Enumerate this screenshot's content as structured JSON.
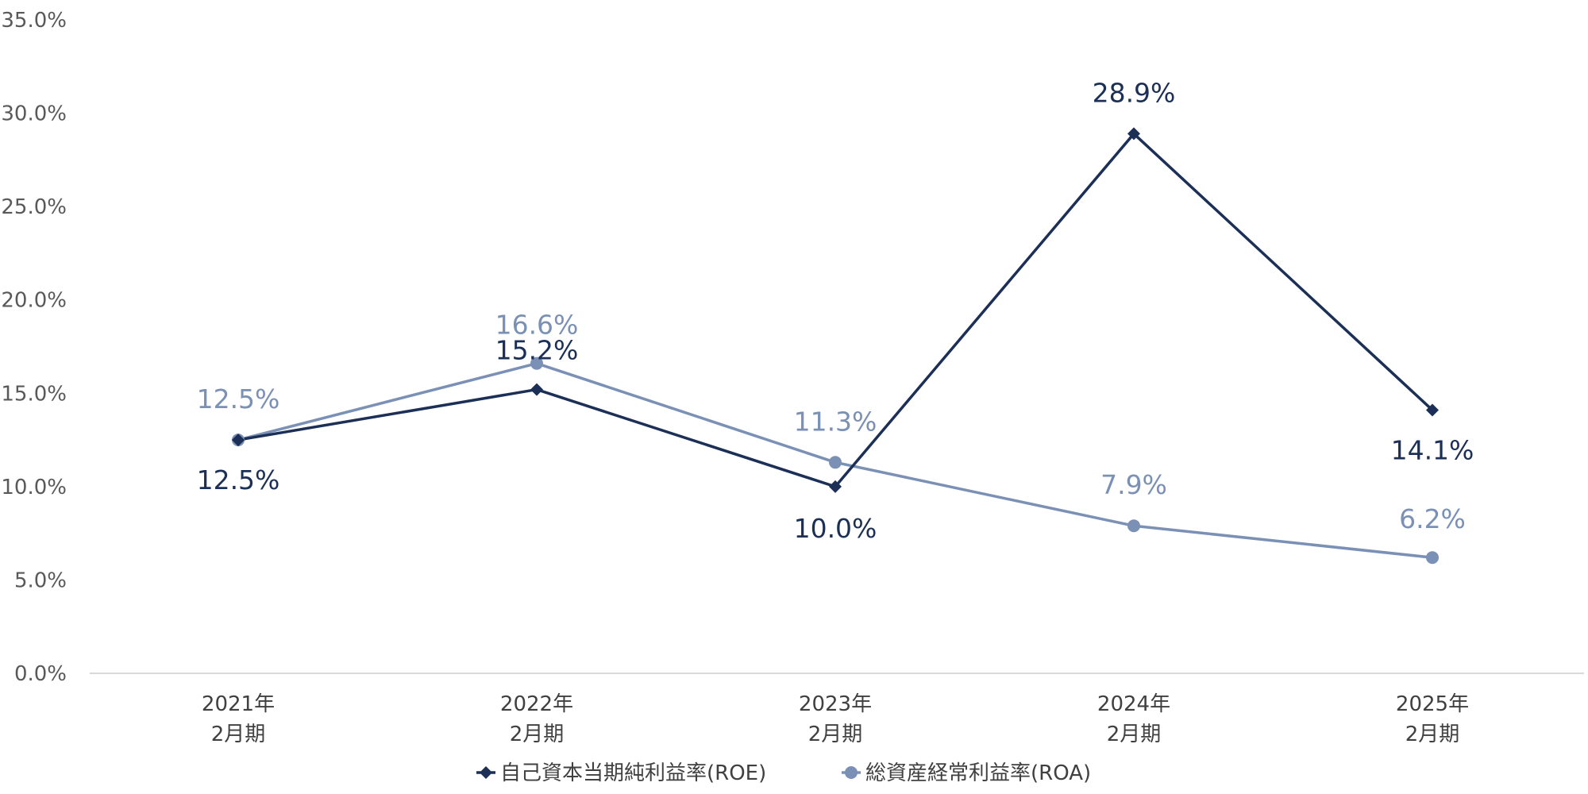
{
  "chart_data": {
    "type": "line",
    "categories": [
      [
        "2021年",
        "2月期"
      ],
      [
        "2022年",
        "2月期"
      ],
      [
        "2023年",
        "2月期"
      ],
      [
        "2024年",
        "2月期"
      ],
      [
        "2025年",
        "2月期"
      ]
    ],
    "series": [
      {
        "name": "自己資本当期純利益率(ROE)",
        "values": [
          12.5,
          15.2,
          10.0,
          28.9,
          14.1
        ],
        "labels": [
          "12.5%",
          "15.2%",
          "10.0%",
          "28.9%",
          "14.1%"
        ],
        "color": "#1b2f57",
        "marker": "diamond"
      },
      {
        "name": "総資産経常利益率(ROA)",
        "values": [
          12.5,
          16.6,
          11.3,
          7.9,
          6.2
        ],
        "labels": [
          "12.5%",
          "16.6%",
          "11.3%",
          "7.9%",
          "6.2%"
        ],
        "color": "#7a90b5",
        "marker": "circle"
      }
    ],
    "ylim": [
      0,
      35
    ],
    "yticks": [
      0,
      5,
      10,
      15,
      20,
      25,
      30,
      35
    ],
    "ytick_labels": [
      "0.0%",
      "5.0%",
      "10.0%",
      "15.0%",
      "20.0%",
      "25.0%",
      "30.0%",
      "35.0%"
    ],
    "grid": false,
    "legend": "bottom",
    "title": "",
    "xlabel": "",
    "ylabel": ""
  }
}
